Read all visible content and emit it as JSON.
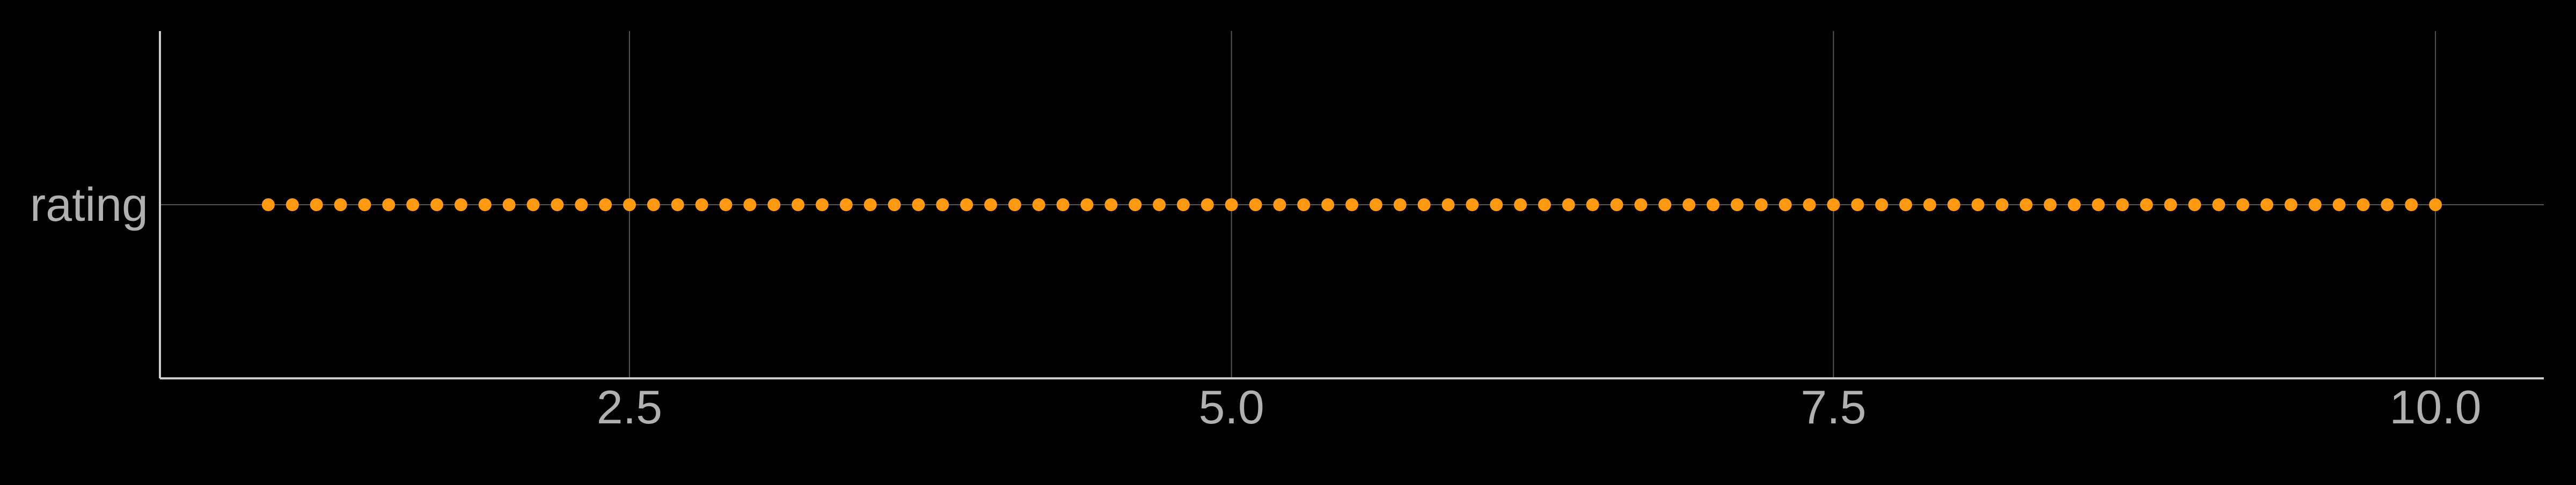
{
  "chart_data": {
    "type": "scatter",
    "title": "",
    "xlabel": "",
    "ylabel": "",
    "xlim": [
      0.55,
      10.45
    ],
    "x_ticks": [
      {
        "value": 2.5,
        "label": "2.5"
      },
      {
        "value": 5.0,
        "label": "5.0"
      },
      {
        "value": 7.5,
        "label": "7.5"
      },
      {
        "value": 10.0,
        "label": "10.0"
      }
    ],
    "y_categories": [
      "rating"
    ],
    "grid": true,
    "legend": "none",
    "series": [
      {
        "category": "rating",
        "x": [
          1.0,
          1.1,
          1.2,
          1.3,
          1.4,
          1.5,
          1.6,
          1.7,
          1.8,
          1.9,
          2.0,
          2.1,
          2.2,
          2.3,
          2.4,
          2.5,
          2.6,
          2.7,
          2.8,
          2.9,
          3.0,
          3.1,
          3.2,
          3.3,
          3.4,
          3.5,
          3.6,
          3.7,
          3.8,
          3.9,
          4.0,
          4.1,
          4.2,
          4.3,
          4.4,
          4.5,
          4.6,
          4.7,
          4.8,
          4.9,
          5.0,
          5.1,
          5.2,
          5.3,
          5.4,
          5.5,
          5.6,
          5.7,
          5.8,
          5.9,
          6.0,
          6.1,
          6.2,
          6.3,
          6.4,
          6.5,
          6.6,
          6.7,
          6.8,
          6.9,
          7.0,
          7.1,
          7.2,
          7.3,
          7.4,
          7.5,
          7.6,
          7.7,
          7.8,
          7.9,
          8.0,
          8.1,
          8.2,
          8.3,
          8.4,
          8.5,
          8.6,
          8.7,
          8.8,
          8.9,
          9.0,
          9.1,
          9.2,
          9.3,
          9.4,
          9.5,
          9.6,
          9.7,
          9.8,
          9.9,
          10.0
        ]
      }
    ],
    "colors": {
      "background": "#000000",
      "point": "#FF9912",
      "grid": "#555555",
      "axis": "#CCCCCC",
      "text": "#B0B0B0"
    }
  }
}
